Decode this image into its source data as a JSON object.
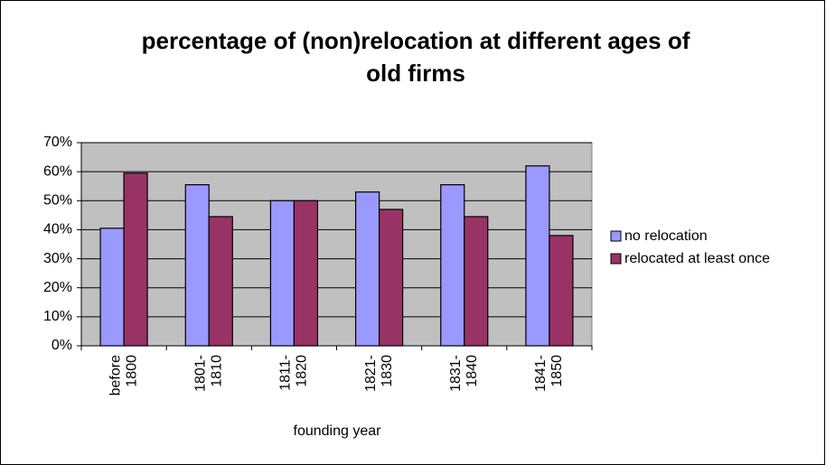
{
  "chart_data": {
    "type": "bar",
    "title": [
      "percentage of (non)relocation at different ages of",
      "old firms"
    ],
    "x_label": "founding year",
    "categories": [
      [
        "before",
        "1800"
      ],
      [
        "1801-",
        "1810"
      ],
      [
        "1811-",
        "1820"
      ],
      [
        "1821-",
        "1830"
      ],
      [
        "1831-",
        "1840"
      ],
      [
        "1841-",
        "1850"
      ]
    ],
    "series": [
      {
        "name": "no relocation",
        "color": "#9999ff",
        "values": [
          40.5,
          55.5,
          50,
          53,
          55.5,
          62
        ]
      },
      {
        "name": "relocated at least once",
        "color": "#993366",
        "values": [
          59.5,
          44.5,
          50,
          47,
          44.5,
          38
        ]
      }
    ],
    "ylim": [
      0,
      70
    ],
    "yticks": [
      {
        "value": 0,
        "label": "0%"
      },
      {
        "value": 10,
        "label": "10%"
      },
      {
        "value": 20,
        "label": "20%"
      },
      {
        "value": 30,
        "label": "30%"
      },
      {
        "value": 40,
        "label": "40%"
      },
      {
        "value": 50,
        "label": "50%"
      },
      {
        "value": 60,
        "label": "60%"
      },
      {
        "value": 70,
        "label": "70%"
      }
    ],
    "grid": true,
    "legend": "right",
    "plot_background": "#c0c0c0"
  }
}
